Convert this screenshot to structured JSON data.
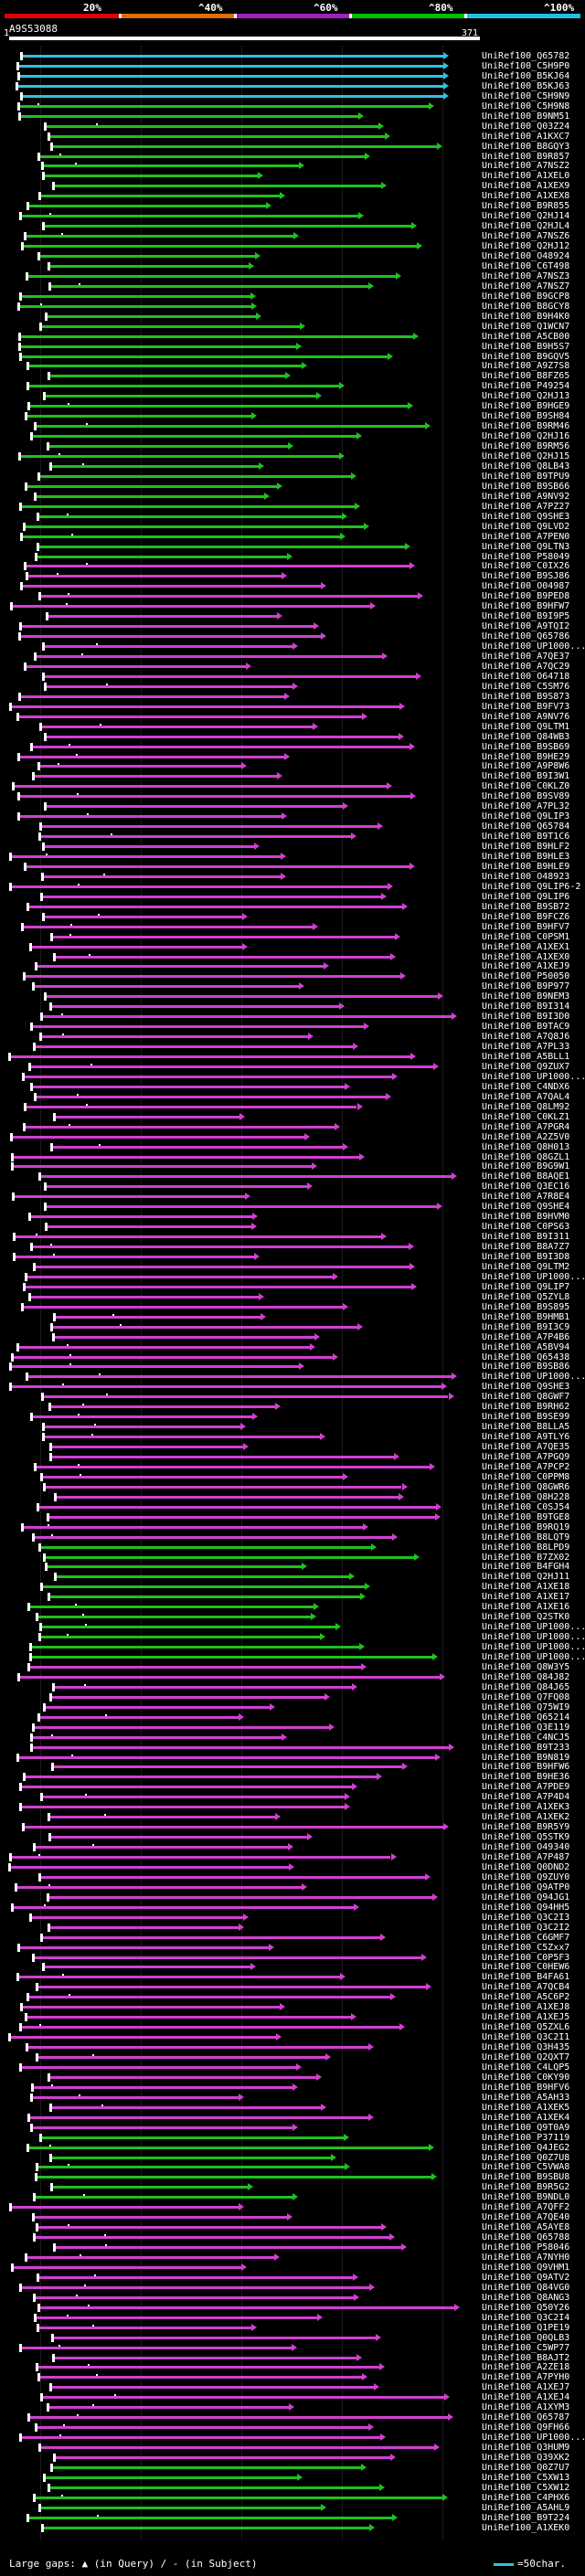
{
  "scale": {
    "labels": [
      "20%",
      "^40%",
      "^60%",
      "^80%",
      "^100%"
    ],
    "colors": [
      "#e00000",
      "#e07000",
      "#a020c0",
      "#00c000",
      "#20c0e0"
    ]
  },
  "query": {
    "name": "A9S53088",
    "start": "1",
    "end": "371"
  },
  "colors": {
    "purple": "#d040d0",
    "green": "#20c020",
    "cyan": "#30c0e0"
  },
  "hits": [
    {
      "label": "UniRef100_Q65782",
      "color": "cyan"
    },
    {
      "label": "UniRef100_C5H9P0",
      "color": "cyan"
    },
    {
      "label": "UniRef100_B5KJ64",
      "color": "cyan"
    },
    {
      "label": "UniRef100_B5KJ63",
      "color": "cyan"
    },
    {
      "label": "UniRef100_C5H9N9",
      "color": "cyan"
    },
    {
      "label": "UniRef100_C5H9N8",
      "color": "green"
    },
    {
      "label": "UniRef100_B9NM51",
      "color": "green"
    },
    {
      "label": "UniRef100_Q03Z24",
      "color": "green"
    },
    {
      "label": "UniRef100_A1KXC7",
      "color": "green"
    },
    {
      "label": "UniRef100_B8GQY3",
      "color": "green"
    },
    {
      "label": "UniRef100_B9R857",
      "color": "green"
    },
    {
      "label": "UniRef100_A7NSZ2",
      "color": "green"
    },
    {
      "label": "UniRef100_A1XEL0",
      "color": "green"
    },
    {
      "label": "UniRef100_A1XEX9",
      "color": "green"
    },
    {
      "label": "UniRef100_A1XEX8",
      "color": "green"
    },
    {
      "label": "UniRef100_B9R855",
      "color": "green"
    },
    {
      "label": "UniRef100_Q2HJ14",
      "color": "green"
    },
    {
      "label": "UniRef100_Q2HJL4",
      "color": "green"
    },
    {
      "label": "UniRef100_A7NSZ6",
      "color": "green"
    },
    {
      "label": "UniRef100_Q2HJ12",
      "color": "green"
    },
    {
      "label": "UniRef100_O48924",
      "color": "green"
    },
    {
      "label": "UniRef100_C6T498",
      "color": "green"
    },
    {
      "label": "UniRef100_A7NSZ3",
      "color": "green"
    },
    {
      "label": "UniRef100_A7NSZ7",
      "color": "green"
    },
    {
      "label": "UniRef100_B9GCP8",
      "color": "green"
    },
    {
      "label": "UniRef100_B8GCY8",
      "color": "green"
    },
    {
      "label": "UniRef100_B9H4K0",
      "color": "green"
    },
    {
      "label": "UniRef100_Q1WCN7",
      "color": "green"
    },
    {
      "label": "UniRef100_A5CB00",
      "color": "green"
    },
    {
      "label": "UniRef100_B9H5S7",
      "color": "green"
    },
    {
      "label": "UniRef100_B9GQV5",
      "color": "green"
    },
    {
      "label": "UniRef100_A9Z7S8",
      "color": "green"
    },
    {
      "label": "UniRef100_B8FZ65",
      "color": "green"
    },
    {
      "label": "UniRef100_P49254",
      "color": "green"
    },
    {
      "label": "UniRef100_Q2HJ13",
      "color": "green"
    },
    {
      "label": "UniRef100_B9HGE9",
      "color": "green"
    },
    {
      "label": "UniRef100_B9SH84",
      "color": "green"
    },
    {
      "label": "UniRef100_B9RM46",
      "color": "green"
    },
    {
      "label": "UniRef100_Q2HJ16",
      "color": "green"
    },
    {
      "label": "UniRef100_B9RM56",
      "color": "green"
    },
    {
      "label": "UniRef100_Q2HJ15",
      "color": "green"
    },
    {
      "label": "UniRef100_Q8LB43",
      "color": "green"
    },
    {
      "label": "UniRef100_B9TPU9",
      "color": "green"
    },
    {
      "label": "UniRef100_B9SB66",
      "color": "green"
    },
    {
      "label": "UniRef100_A9NV92",
      "color": "green"
    },
    {
      "label": "UniRef100_A7PZ27",
      "color": "green"
    },
    {
      "label": "UniRef100_Q9SHE3",
      "color": "green"
    },
    {
      "label": "UniRef100_Q9LVD2",
      "color": "green"
    },
    {
      "label": "UniRef100_A7PEN0",
      "color": "green"
    },
    {
      "label": "UniRef100_Q9LTN3",
      "color": "green"
    },
    {
      "label": "UniRef100_P58049",
      "color": "green"
    },
    {
      "label": "UniRef100_C0IX26",
      "color": "purple"
    },
    {
      "label": "UniRef100_B9SJ86",
      "color": "purple"
    },
    {
      "label": "UniRef100_O04987",
      "color": "purple"
    },
    {
      "label": "UniRef100_B9PED8",
      "color": "purple"
    },
    {
      "label": "UniRef100_B9HFW7",
      "color": "purple"
    },
    {
      "label": "UniRef100_B9I9P5",
      "color": "purple"
    },
    {
      "label": "UniRef100_A9TQI2",
      "color": "purple"
    },
    {
      "label": "UniRef100_Q65786",
      "color": "purple"
    },
    {
      "label": "UniRef100_UP1000...",
      "color": "purple"
    },
    {
      "label": "UniRef100_A7QE37",
      "color": "purple"
    },
    {
      "label": "UniRef100_A7QC29",
      "color": "purple"
    },
    {
      "label": "UniRef100_O64718",
      "color": "purple"
    },
    {
      "label": "UniRef100_C5SM76",
      "color": "purple"
    },
    {
      "label": "UniRef100_B9S873",
      "color": "purple"
    },
    {
      "label": "UniRef100_B9FV73",
      "color": "purple"
    },
    {
      "label": "UniRef100_A9NV76",
      "color": "purple"
    },
    {
      "label": "UniRef100_Q9LTM1",
      "color": "purple"
    },
    {
      "label": "UniRef100_Q84WB3",
      "color": "purple"
    },
    {
      "label": "UniRef100_B9SB69",
      "color": "purple"
    },
    {
      "label": "UniRef100_B9HE29",
      "color": "purple"
    },
    {
      "label": "UniRef100_A9P8W6",
      "color": "purple"
    },
    {
      "label": "UniRef100_B9I3W1",
      "color": "purple"
    },
    {
      "label": "UniRef100_C0KLZ0",
      "color": "purple"
    },
    {
      "label": "UniRef100_B9SV89",
      "color": "purple"
    },
    {
      "label": "UniRef100_A7PL32",
      "color": "purple"
    },
    {
      "label": "UniRef100_Q9LIP3",
      "color": "purple"
    },
    {
      "label": "UniRef100_Q65784",
      "color": "purple"
    },
    {
      "label": "UniRef100_B9T1C6",
      "color": "purple"
    },
    {
      "label": "UniRef100_B9HLF2",
      "color": "purple"
    },
    {
      "label": "UniRef100_B9HLE3",
      "color": "purple"
    },
    {
      "label": "UniRef100_B9HLE9",
      "color": "purple"
    },
    {
      "label": "UniRef100_O48923",
      "color": "purple"
    },
    {
      "label": "UniRef100_Q9LIP6-2",
      "color": "purple"
    },
    {
      "label": "UniRef100_Q9LIP6",
      "color": "purple"
    },
    {
      "label": "UniRef100_B9SB72",
      "color": "purple"
    },
    {
      "label": "UniRef100_B9FCZ6",
      "color": "purple"
    },
    {
      "label": "UniRef100_B9HFV7",
      "color": "purple"
    },
    {
      "label": "UniRef100_C0PSM1",
      "color": "purple"
    },
    {
      "label": "UniRef100_A1XEX1",
      "color": "purple"
    },
    {
      "label": "UniRef100_A1XEX0",
      "color": "purple"
    },
    {
      "label": "UniRef100_A1XEJ9",
      "color": "purple"
    },
    {
      "label": "UniRef100_P50050",
      "color": "purple"
    },
    {
      "label": "UniRef100_B9P977",
      "color": "purple"
    },
    {
      "label": "UniRef100_B9NEM3",
      "color": "purple"
    },
    {
      "label": "UniRef100_B9I314",
      "color": "purple"
    },
    {
      "label": "UniRef100_B9I3D0",
      "color": "purple"
    },
    {
      "label": "UniRef100_B9TAC9",
      "color": "purple"
    },
    {
      "label": "UniRef100_A7Q8J6",
      "color": "purple"
    },
    {
      "label": "UniRef100_A7PL33",
      "color": "purple"
    },
    {
      "label": "UniRef100_A5BLL1",
      "color": "purple"
    },
    {
      "label": "UniRef100_Q9ZUX7",
      "color": "purple"
    },
    {
      "label": "UniRef100_UP1000...",
      "color": "purple"
    },
    {
      "label": "UniRef100_C4NDX6",
      "color": "purple"
    },
    {
      "label": "UniRef100_A7QAL4",
      "color": "purple"
    },
    {
      "label": "UniRef100_Q8LM92",
      "color": "purple"
    },
    {
      "label": "UniRef100_C0KLZ1",
      "color": "purple"
    },
    {
      "label": "UniRef100_A7PGR4",
      "color": "purple"
    },
    {
      "label": "UniRef100_A2Z5V0",
      "color": "purple"
    },
    {
      "label": "UniRef100_Q8H013",
      "color": "purple"
    },
    {
      "label": "UniRef100_Q8GZL1",
      "color": "purple"
    },
    {
      "label": "UniRef100_B9G9W1",
      "color": "purple"
    },
    {
      "label": "UniRef100_B8AQE1",
      "color": "purple"
    },
    {
      "label": "UniRef100_Q3EC16",
      "color": "purple"
    },
    {
      "label": "UniRef100_A7R8E4",
      "color": "purple"
    },
    {
      "label": "UniRef100_Q9SHE4",
      "color": "purple"
    },
    {
      "label": "UniRef100_B9HVM0",
      "color": "purple"
    },
    {
      "label": "UniRef100_C0PS63",
      "color": "purple"
    },
    {
      "label": "UniRef100_B9I311",
      "color": "purple"
    },
    {
      "label": "UniRef100_B8A7Z7",
      "color": "purple"
    },
    {
      "label": "UniRef100_B9I3D8",
      "color": "purple"
    },
    {
      "label": "UniRef100_Q9LTM2",
      "color": "purple"
    },
    {
      "label": "UniRef100_UP1000...",
      "color": "purple"
    },
    {
      "label": "UniRef100_Q9LIP7",
      "color": "purple"
    },
    {
      "label": "UniRef100_Q5ZYL8",
      "color": "purple"
    },
    {
      "label": "UniRef100_B9S895",
      "color": "purple"
    },
    {
      "label": "UniRef100_B9HMB1",
      "color": "purple"
    },
    {
      "label": "UniRef100_B9I3C9",
      "color": "purple"
    },
    {
      "label": "UniRef100_A7P4B6",
      "color": "purple"
    },
    {
      "label": "UniRef100_A5BV94",
      "color": "purple"
    },
    {
      "label": "UniRef100_Q65438",
      "color": "purple"
    },
    {
      "label": "UniRef100_B9SB86",
      "color": "purple"
    },
    {
      "label": "UniRef100_UP1000...",
      "color": "purple"
    },
    {
      "label": "UniRef100_Q9SHE3",
      "color": "purple"
    },
    {
      "label": "UniRef100_Q8GWF7",
      "color": "purple"
    },
    {
      "label": "UniRef100_B9RH62",
      "color": "purple"
    },
    {
      "label": "UniRef100_B9SE99",
      "color": "purple"
    },
    {
      "label": "UniRef100_B8LLA5",
      "color": "purple"
    },
    {
      "label": "UniRef100_A9TLY6",
      "color": "purple"
    },
    {
      "label": "UniRef100_A7QE35",
      "color": "purple"
    },
    {
      "label": "UniRef100_A7PGQ9",
      "color": "purple"
    },
    {
      "label": "UniRef100_A7PCP2",
      "color": "purple"
    },
    {
      "label": "UniRef100_C0PPM8",
      "color": "purple"
    },
    {
      "label": "UniRef100_Q8GWR6",
      "color": "purple"
    },
    {
      "label": "UniRef100_Q8H228",
      "color": "purple"
    },
    {
      "label": "UniRef100_C0SJ54",
      "color": "purple"
    },
    {
      "label": "UniRef100_B9TGE8",
      "color": "purple"
    },
    {
      "label": "UniRef100_B9RQ19",
      "color": "purple"
    },
    {
      "label": "UniRef100_B8LQT9",
      "color": "purple"
    },
    {
      "label": "UniRef100_B8LPD9",
      "color": "green"
    },
    {
      "label": "UniRef100_B7ZX02",
      "color": "green"
    },
    {
      "label": "UniRef100_B4FGH4",
      "color": "green"
    },
    {
      "label": "UniRef100_Q2HJ11",
      "color": "green"
    },
    {
      "label": "UniRef100_A1XE18",
      "color": "green"
    },
    {
      "label": "UniRef100_A1XE17",
      "color": "green"
    },
    {
      "label": "UniRef100_A1XE16",
      "color": "green"
    },
    {
      "label": "UniRef100_Q2STK0",
      "color": "green"
    },
    {
      "label": "UniRef100_UP1000...",
      "color": "green"
    },
    {
      "label": "UniRef100_UP1000...",
      "color": "green"
    },
    {
      "label": "UniRef100_UP1000...",
      "color": "green"
    },
    {
      "label": "UniRef100_UP1000...",
      "color": "green"
    },
    {
      "label": "UniRef100_Q8W3Y5",
      "color": "purple"
    },
    {
      "label": "UniRef100_Q84J82",
      "color": "purple"
    },
    {
      "label": "UniRef100_Q84J65",
      "color": "purple"
    },
    {
      "label": "UniRef100_Q7FQ08",
      "color": "purple"
    },
    {
      "label": "UniRef100_Q75WI9",
      "color": "purple"
    },
    {
      "label": "UniRef100_Q65214",
      "color": "purple"
    },
    {
      "label": "UniRef100_Q3E119",
      "color": "purple"
    },
    {
      "label": "UniRef100_C4NCJ5",
      "color": "purple"
    },
    {
      "label": "UniRef100_B9T233",
      "color": "purple"
    },
    {
      "label": "UniRef100_B9N819",
      "color": "purple"
    },
    {
      "label": "UniRef100_B9HFW6",
      "color": "purple"
    },
    {
      "label": "UniRef100_B9HE36",
      "color": "purple"
    },
    {
      "label": "UniRef100_A7PDE9",
      "color": "purple"
    },
    {
      "label": "UniRef100_A7P4D4",
      "color": "purple"
    },
    {
      "label": "UniRef100_A1XEK3",
      "color": "purple"
    },
    {
      "label": "UniRef100_A1XEK2",
      "color": "purple"
    },
    {
      "label": "UniRef100_B9R5Y9",
      "color": "purple"
    },
    {
      "label": "UniRef100_Q5STK9",
      "color": "purple"
    },
    {
      "label": "UniRef100_O49340",
      "color": "purple"
    },
    {
      "label": "UniRef100_A7P487",
      "color": "purple"
    },
    {
      "label": "UniRef100_Q0DND2",
      "color": "purple"
    },
    {
      "label": "UniRef100_Q9ZUY0",
      "color": "purple"
    },
    {
      "label": "UniRef100_Q9ATP0",
      "color": "purple"
    },
    {
      "label": "UniRef100_Q94JG1",
      "color": "purple"
    },
    {
      "label": "UniRef100_Q94HH5",
      "color": "purple"
    },
    {
      "label": "UniRef100_Q3C2I3",
      "color": "purple"
    },
    {
      "label": "UniRef100_Q3C2I2",
      "color": "purple"
    },
    {
      "label": "UniRef100_C6GMF7",
      "color": "purple"
    },
    {
      "label": "UniRef100_C5Zxx7",
      "color": "purple"
    },
    {
      "label": "UniRef100_C0P5F3",
      "color": "purple"
    },
    {
      "label": "UniRef100_C0HEW6",
      "color": "purple"
    },
    {
      "label": "UniRef100_B4FA61",
      "color": "purple"
    },
    {
      "label": "UniRef100_A7QCB4",
      "color": "purple"
    },
    {
      "label": "UniRef100_A5C6P2",
      "color": "purple"
    },
    {
      "label": "UniRef100_A1XEJ8",
      "color": "purple"
    },
    {
      "label": "UniRef100_A1XEJ5",
      "color": "purple"
    },
    {
      "label": "UniRef100_Q5ZXL6",
      "color": "purple"
    },
    {
      "label": "UniRef100_Q3C2I1",
      "color": "purple"
    },
    {
      "label": "UniRef100_Q3H435",
      "color": "purple"
    },
    {
      "label": "UniRef100_Q2QXT7",
      "color": "purple"
    },
    {
      "label": "UniRef100_C4LQP5",
      "color": "purple"
    },
    {
      "label": "UniRef100_C0KY90",
      "color": "purple"
    },
    {
      "label": "UniRef100_B9HFV6",
      "color": "purple"
    },
    {
      "label": "UniRef100_A5AH33",
      "color": "purple"
    },
    {
      "label": "UniRef100_A1XEK5",
      "color": "purple"
    },
    {
      "label": "UniRef100_A1XEK4",
      "color": "purple"
    },
    {
      "label": "UniRef100_Q9T0A9",
      "color": "purple"
    },
    {
      "label": "UniRef100_P37119",
      "color": "green"
    },
    {
      "label": "UniRef100_Q4JEG2",
      "color": "green"
    },
    {
      "label": "UniRef100_Q0Z7U8",
      "color": "green"
    },
    {
      "label": "UniRef100_C5VWA8",
      "color": "green"
    },
    {
      "label": "UniRef100_B9SBU8",
      "color": "green"
    },
    {
      "label": "UniRef100_B9R5G2",
      "color": "green"
    },
    {
      "label": "UniRef100_B9NDL0",
      "color": "green"
    },
    {
      "label": "UniRef100_A7QFF2",
      "color": "purple"
    },
    {
      "label": "UniRef100_A7QE40",
      "color": "purple"
    },
    {
      "label": "UniRef100_A5AYE8",
      "color": "purple"
    },
    {
      "label": "UniRef100_Q65788",
      "color": "purple"
    },
    {
      "label": "UniRef100_P58046",
      "color": "purple"
    },
    {
      "label": "UniRef100_A7NYH0",
      "color": "purple"
    },
    {
      "label": "UniRef100_Q9VHM1",
      "color": "purple"
    },
    {
      "label": "UniRef100_Q9ATV2",
      "color": "purple"
    },
    {
      "label": "UniRef100_Q84VG0",
      "color": "purple"
    },
    {
      "label": "UniRef100_Q8ANG3",
      "color": "purple"
    },
    {
      "label": "UniRef100_Q50Y26",
      "color": "purple"
    },
    {
      "label": "UniRef100_Q3C2I4",
      "color": "purple"
    },
    {
      "label": "UniRef100_Q1PE19",
      "color": "purple"
    },
    {
      "label": "UniRef100_Q0QLB3",
      "color": "purple"
    },
    {
      "label": "UniRef100_C5WP77",
      "color": "purple"
    },
    {
      "label": "UniRef100_B8AJT2",
      "color": "purple"
    },
    {
      "label": "UniRef100_A2ZE18",
      "color": "purple"
    },
    {
      "label": "UniRef100_A7PYH0",
      "color": "purple"
    },
    {
      "label": "UniRef100_A1XEJ7",
      "color": "purple"
    },
    {
      "label": "UniRef100_A1XEJ4",
      "color": "purple"
    },
    {
      "label": "UniRef100_A1XYM3",
      "color": "purple"
    },
    {
      "label": "UniRef100_Q65787",
      "color": "purple"
    },
    {
      "label": "UniRef100_Q9FH66",
      "color": "purple"
    },
    {
      "label": "UniRef100_UP1000...",
      "color": "purple"
    },
    {
      "label": "UniRef100_Q3HUM9",
      "color": "purple"
    },
    {
      "label": "UniRef100_Q39XK2",
      "color": "purple"
    },
    {
      "label": "UniRef100_Q0Z7U7",
      "color": "green"
    },
    {
      "label": "UniRef100_C5XW13",
      "color": "green"
    },
    {
      "label": "UniRef100_C5XW12",
      "color": "green"
    },
    {
      "label": "UniRef100_C4PHX6",
      "color": "green"
    },
    {
      "label": "UniRef100_A5AHL9",
      "color": "green"
    },
    {
      "label": "UniRef100_B9T224",
      "color": "green"
    },
    {
      "label": "UniRef100_A1XEK0",
      "color": "green"
    }
  ],
  "legend": {
    "left": "Large gaps: ▲ (in Query) / - (in Subject)",
    "right": "=50char."
  }
}
